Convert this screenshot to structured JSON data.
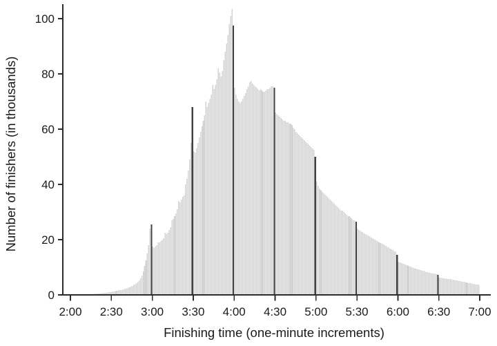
{
  "figure": {
    "background": "#ffffff"
  },
  "chart_data": {
    "type": "bar",
    "title": "",
    "xlabel": "Finishing time (one-minute increments)",
    "ylabel": "Number of finishers (in thousands)",
    "x_start": "2:01",
    "x_end": "7:00",
    "bin_minutes": 1,
    "x_tick_labels": [
      "2:00",
      "2:30",
      "3:00",
      "3:30",
      "4:00",
      "4:30",
      "5:00",
      "5:30",
      "6:00",
      "6:30",
      "7:00"
    ],
    "y_ticks": [
      0,
      20,
      40,
      60,
      80,
      100
    ],
    "ylim": [
      0,
      105
    ],
    "grid": false,
    "legend": false,
    "bar_color": "#d3d3d3",
    "emphasis_bar_color": "#414141",
    "axis_color": "#2b2b2b",
    "text_color": "#1a1a1a",
    "emphasis_times": [
      "3:00",
      "3:30",
      "4:00",
      "4:30",
      "5:00",
      "5:30",
      "6:00",
      "6:30"
    ],
    "emphasis_indices": [
      59,
      89,
      119,
      149,
      179,
      209,
      239,
      269
    ],
    "values": [
      0,
      0,
      0,
      0,
      0,
      0,
      0.05,
      0.1,
      0.1,
      0.1,
      0.15,
      0.15,
      0.2,
      0.2,
      0.25,
      0.3,
      0.3,
      0.35,
      0.4,
      0.45,
      0.5,
      0.55,
      0.6,
      0.65,
      0.7,
      0.75,
      0.8,
      0.9,
      0.95,
      1.0,
      1.1,
      1.2,
      1.3,
      1.4,
      1.5,
      1.6,
      1.7,
      1.8,
      1.9,
      2.1,
      2.2,
      2.4,
      2.6,
      2.8,
      3.0,
      3.3,
      3.6,
      3.9,
      4.2,
      4.6,
      5.2,
      6.0,
      7.0,
      8.5,
      10.5,
      12.5,
      15,
      18,
      24,
      25.5,
      17.5,
      17,
      17.5,
      18,
      19,
      19,
      19.5,
      20,
      20.5,
      22.5,
      22,
      22.5,
      23.5,
      24.5,
      27,
      27.5,
      28.5,
      29.5,
      31,
      34,
      33.5,
      34.5,
      35.5,
      36,
      40,
      42,
      45,
      49,
      55,
      68,
      52,
      51.5,
      53,
      55,
      57,
      59,
      61,
      63,
      65,
      70,
      68,
      69.5,
      71,
      72.5,
      76,
      74.5,
      76,
      78,
      82,
      80.5,
      79,
      81,
      85,
      88,
      91,
      94,
      98,
      101,
      103.5,
      97.5,
      75,
      72.5,
      71,
      70,
      69.5,
      70,
      71,
      72,
      73,
      74.5,
      75.5,
      77,
      77.5,
      76.5,
      76,
      75.5,
      75,
      74.5,
      74,
      74.5,
      74,
      73.5,
      73.5,
      74,
      74.5,
      74.5,
      75,
      75.5,
      75.5,
      75,
      66,
      65.5,
      65,
      64.5,
      64,
      63.5,
      63,
      63,
      62.5,
      62.5,
      62,
      62,
      61.5,
      60.5,
      60,
      59,
      58.5,
      58,
      57.5,
      57,
      56.5,
      56,
      55.5,
      55,
      54.5,
      54,
      53.5,
      53,
      52.5,
      50,
      41,
      39.5,
      38.5,
      38,
      37.5,
      37,
      36.5,
      36,
      35.5,
      35,
      34.5,
      34,
      33.5,
      33,
      32.5,
      32,
      31.5,
      31,
      30.5,
      30.5,
      30,
      29.5,
      29,
      28.5,
      28.5,
      28,
      27.5,
      27,
      27,
      26.5,
      24,
      23.5,
      23.2,
      22.9,
      22.6,
      22.3,
      22,
      21.7,
      21.4,
      21.1,
      20.8,
      20.5,
      20.2,
      19.9,
      19.6,
      19.3,
      19,
      18.8,
      18.6,
      18.4,
      18,
      17.7,
      17.4,
      17.1,
      16.8,
      16.5,
      16.2,
      15.9,
      15.6,
      14.5,
      12,
      11.8,
      11.6,
      11.4,
      11.2,
      11,
      10.8,
      10.6,
      10.4,
      10.2,
      10,
      9.8,
      9.6,
      9.5,
      9.3,
      9.2,
      9,
      8.9,
      8.7,
      8.6,
      8.4,
      8.3,
      8.1,
      8,
      7.9,
      7.8,
      7.7,
      7.6,
      7.5,
      7.3,
      6.3,
      6.2,
      6.1,
      6,
      6,
      5.9,
      5.8,
      5.7,
      5.7,
      5.6,
      5.5,
      5.4,
      5.3,
      5.2,
      5.1,
      5,
      4.9,
      4.8,
      4.7,
      4.6,
      4.5,
      4.4,
      4.3,
      4.2,
      4.1,
      4,
      3.9,
      3.8,
      3.7,
      3.6
    ]
  }
}
